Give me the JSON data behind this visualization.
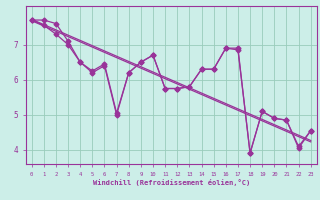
{
  "xlabel": "Windchill (Refroidissement éolien,°C)",
  "bg_color": "#cceee8",
  "grid_color": "#99ccbb",
  "line_color": "#993399",
  "x_values": [
    0,
    1,
    2,
    3,
    4,
    5,
    6,
    7,
    8,
    9,
    10,
    11,
    12,
    13,
    14,
    15,
    16,
    17,
    18,
    19,
    20,
    21,
    22,
    23
  ],
  "y_main": [
    7.7,
    7.7,
    7.6,
    7.1,
    6.5,
    6.2,
    6.4,
    5.0,
    6.2,
    6.5,
    6.7,
    5.75,
    5.75,
    5.8,
    6.3,
    6.3,
    6.9,
    6.9,
    3.9,
    5.1,
    4.9,
    4.85,
    4.05,
    4.55
  ],
  "y_line2": [
    7.7,
    7.55,
    7.3,
    7.0,
    6.5,
    6.25,
    6.45,
    5.05,
    6.2,
    6.5,
    6.7,
    5.75,
    5.75,
    5.8,
    6.3,
    6.3,
    6.9,
    6.85,
    3.92,
    5.1,
    4.9,
    4.85,
    4.1,
    4.55
  ],
  "y_trend": [
    7.68,
    7.53,
    7.38,
    7.23,
    7.08,
    6.93,
    6.78,
    6.63,
    6.48,
    6.33,
    6.18,
    6.03,
    5.88,
    5.73,
    5.58,
    5.43,
    5.28,
    5.13,
    4.98,
    4.83,
    4.68,
    4.53,
    4.38,
    4.23
  ],
  "y_trend2": [
    7.72,
    7.57,
    7.42,
    7.27,
    7.12,
    6.97,
    6.82,
    6.67,
    6.52,
    6.37,
    6.22,
    6.07,
    5.92,
    5.77,
    5.62,
    5.47,
    5.32,
    5.17,
    5.02,
    4.87,
    4.72,
    4.57,
    4.42,
    4.27
  ],
  "ylim": [
    3.6,
    8.1
  ],
  "yticks": [
    4,
    5,
    6,
    7
  ],
  "xlim": [
    -0.5,
    23.5
  ],
  "xticks": [
    0,
    1,
    2,
    3,
    4,
    5,
    6,
    7,
    8,
    9,
    10,
    11,
    12,
    13,
    14,
    15,
    16,
    17,
    18,
    19,
    20,
    21,
    22,
    23
  ],
  "marker": "D",
  "markersize": 2.5,
  "linewidth": 0.9
}
